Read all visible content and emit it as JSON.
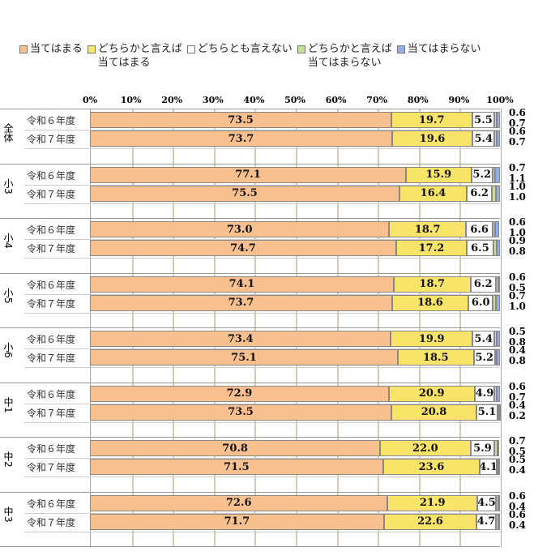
{
  "legend": [
    {
      "label": "当てはまる",
      "color": "#F9C08F"
    },
    {
      "label": "どちらかと言えば\n当てはまる",
      "color": "#F9E46A"
    },
    {
      "label": "どちらとも言えない",
      "color": "#FFFFFF"
    },
    {
      "label": "どちらかと言えば\n当てはまらない",
      "color": "#C6E09A"
    },
    {
      "label": "当てはまらない",
      "color": "#8FB0E6"
    }
  ],
  "chart_data": {
    "type": "bar",
    "stacked": true,
    "orientation": "horizontal",
    "xlabel": "",
    "ylabel": "",
    "xlim": [
      0,
      100
    ],
    "x_ticks": [
      "0%",
      "10%",
      "20%",
      "30%",
      "40%",
      "50%",
      "60%",
      "70%",
      "80%",
      "90%",
      "100%"
    ],
    "series_names": [
      "当てはまる",
      "どちらかと言えば当てはまる",
      "どちらとも言えない",
      "どちらかと言えば当てはまらない",
      "当てはまらない"
    ],
    "groups": [
      {
        "group": "全体",
        "rows": [
          {
            "label": "令和６年度",
            "values": [
              73.5,
              19.7,
              5.5,
              0.6,
              0.7
            ]
          },
          {
            "label": "令和７年度",
            "values": [
              73.7,
              19.6,
              5.4,
              0.6,
              0.7
            ]
          }
        ]
      },
      {
        "group": "小3",
        "rows": [
          {
            "label": "令和６年度",
            "values": [
              77.1,
              15.9,
              5.2,
              0.7,
              1.1
            ]
          },
          {
            "label": "令和７年度",
            "values": [
              75.5,
              16.4,
              6.2,
              1.0,
              1.0
            ]
          }
        ]
      },
      {
        "group": "小4",
        "rows": [
          {
            "label": "令和６年度",
            "values": [
              73.0,
              18.7,
              6.6,
              0.6,
              1.0
            ]
          },
          {
            "label": "令和７年度",
            "values": [
              74.7,
              17.2,
              6.5,
              0.9,
              0.8
            ]
          }
        ]
      },
      {
        "group": "小5",
        "rows": [
          {
            "label": "令和６年度",
            "values": [
              74.1,
              18.7,
              6.2,
              0.6,
              0.5
            ]
          },
          {
            "label": "令和７年度",
            "values": [
              73.7,
              18.6,
              6.0,
              0.7,
              1.0
            ]
          }
        ]
      },
      {
        "group": "小6",
        "rows": [
          {
            "label": "令和６年度",
            "values": [
              73.4,
              19.9,
              5.4,
              0.5,
              0.8
            ]
          },
          {
            "label": "令和７年度",
            "values": [
              75.1,
              18.5,
              5.2,
              0.4,
              0.8
            ]
          }
        ]
      },
      {
        "group": "中1",
        "rows": [
          {
            "label": "令和６年度",
            "values": [
              72.9,
              20.9,
              4.9,
              0.6,
              0.7
            ]
          },
          {
            "label": "令和７年度",
            "values": [
              73.5,
              20.8,
              5.1,
              0.4,
              0.2
            ]
          }
        ]
      },
      {
        "group": "中2",
        "rows": [
          {
            "label": "令和６年度",
            "values": [
              70.8,
              22.0,
              5.9,
              0.7,
              0.5
            ]
          },
          {
            "label": "令和７年度",
            "values": [
              71.5,
              23.6,
              4.1,
              0.5,
              0.4
            ]
          }
        ]
      },
      {
        "group": "中3",
        "rows": [
          {
            "label": "令和６年度",
            "values": [
              72.6,
              21.9,
              4.5,
              0.6,
              0.4
            ]
          },
          {
            "label": "令和７年度",
            "values": [
              71.7,
              22.6,
              4.7,
              0.6,
              0.4
            ]
          }
        ]
      }
    ]
  }
}
